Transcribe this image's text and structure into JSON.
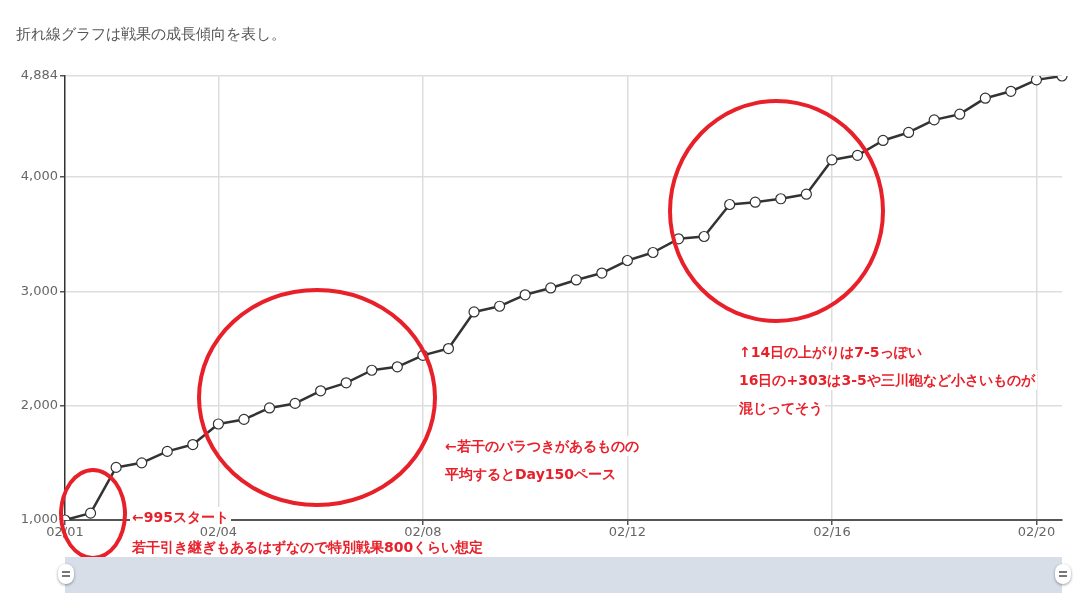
{
  "chart_data": {
    "type": "line",
    "title": "折れ線グラフは戦果の成長傾向を表し。",
    "categories": [
      "02/01",
      null,
      null,
      null,
      null,
      null,
      "02/04",
      null,
      null,
      null,
      null,
      null,
      null,
      null,
      "02/08",
      null,
      null,
      null,
      null,
      null,
      null,
      null,
      "02/12",
      null,
      null,
      null,
      null,
      null,
      null,
      null,
      "02/16",
      null,
      null,
      null,
      null,
      null,
      null,
      null,
      "02/20",
      null
    ],
    "series": [
      {
        "color": "#333333",
        "values": [
          1000,
          1060,
          1460,
          1500,
          1600,
          1660,
          1840,
          1880,
          1980,
          2020,
          2130,
          2200,
          2310,
          2340,
          2440,
          2500,
          2820,
          2870,
          2970,
          3030,
          3100,
          3160,
          3270,
          3340,
          3460,
          3480,
          3760,
          3780,
          3810,
          3850,
          4150,
          4190,
          4320,
          4390,
          4500,
          4550,
          4690,
          4750,
          4850,
          4884
        ]
      }
    ],
    "ylim": [
      1000,
      4884
    ],
    "yticks": [
      {
        "value": 1000,
        "label": "1,000"
      },
      {
        "value": 2000,
        "label": "2,000"
      },
      {
        "value": 3000,
        "label": "3,000"
      },
      {
        "value": 4000,
        "label": "4,000"
      },
      {
        "value": 4884,
        "label": "4,884"
      }
    ],
    "grid": true,
    "marker": "circle",
    "line_style": "solid",
    "legend": false,
    "annotations": [
      "←995スタート",
      "若干引き継ぎもあるはずなので特別戦果800くらい想定",
      "←若干のバラつきがあるものの",
      "平均するとDay150ペース",
      "↑14日の上がりは7-5っぽい",
      "16日の+303は3-5や三川砲など小さいものが",
      "混じってそう"
    ]
  }
}
